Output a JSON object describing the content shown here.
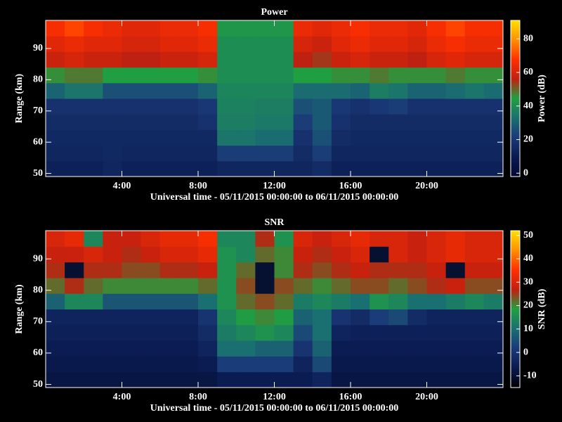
{
  "chart_data": [
    {
      "type": "heatmap",
      "title": "Power",
      "xlabel": "Universal time - 05/11/2015 00:00:00 to 06/11/2015 00:00:00",
      "ylabel": "Range (km)",
      "zlabel": "Power (dB)",
      "xlim": [
        0,
        24
      ],
      "ylim": [
        49,
        99
      ],
      "zlim": [
        -2,
        91
      ],
      "xticks": [
        {
          "value": 4,
          "label": "4:00"
        },
        {
          "value": 8,
          "label": "8:00"
        },
        {
          "value": 12,
          "label": "12:00"
        },
        {
          "value": 16,
          "label": "16:00"
        },
        {
          "value": 20,
          "label": "20:00"
        }
      ],
      "yticks": [
        50,
        60,
        70,
        80,
        90
      ],
      "zticks": [
        0,
        20,
        40,
        60,
        80
      ],
      "colormap": [
        "#000830",
        "#0a1a50",
        "#1a3a78",
        "#1a7070",
        "#20a040",
        "#c02010",
        "#ff3000",
        "#ff9000",
        "#ffe000"
      ],
      "xbins": [
        0,
        1,
        2,
        3,
        4,
        5,
        6,
        7,
        8,
        9,
        10,
        11,
        12,
        13,
        14,
        15,
        16,
        17,
        18,
        19,
        20,
        21,
        22,
        23,
        24
      ],
      "ybins": [
        49,
        54,
        59,
        64,
        69,
        74,
        79,
        84,
        89,
        94,
        99
      ],
      "z": [
        [
          12,
          12,
          12,
          14,
          12,
          12,
          12,
          12,
          12,
          14,
          14,
          14,
          14,
          14,
          16,
          12,
          12,
          12,
          12,
          12,
          12,
          12,
          12,
          12
        ],
        [
          14,
          14,
          14,
          15,
          14,
          14,
          14,
          14,
          14,
          22,
          22,
          22,
          22,
          16,
          22,
          14,
          14,
          14,
          14,
          14,
          14,
          14,
          14,
          14
        ],
        [
          15,
          15,
          15,
          15,
          15,
          15,
          15,
          15,
          15,
          34,
          34,
          32,
          32,
          18,
          26,
          16,
          15,
          15,
          15,
          15,
          15,
          15,
          15,
          15
        ],
        [
          16,
          16,
          16,
          16,
          16,
          16,
          16,
          16,
          18,
          36,
          36,
          35,
          35,
          22,
          28,
          18,
          16,
          16,
          16,
          16,
          16,
          16,
          16,
          16
        ],
        [
          18,
          18,
          18,
          18,
          18,
          18,
          18,
          18,
          20,
          37,
          37,
          36,
          36,
          26,
          28,
          20,
          18,
          20,
          22,
          18,
          18,
          18,
          18,
          18
        ],
        [
          30,
          34,
          34,
          26,
          26,
          26,
          26,
          26,
          30,
          38,
          38,
          38,
          38,
          32,
          32,
          32,
          30,
          36,
          34,
          30,
          30,
          32,
          34,
          32
        ],
        [
          46,
          48,
          48,
          44,
          44,
          44,
          44,
          44,
          46,
          40,
          40,
          40,
          40,
          44,
          44,
          46,
          46,
          48,
          46,
          46,
          46,
          48,
          46,
          46
        ],
        [
          58,
          60,
          58,
          58,
          56,
          56,
          58,
          58,
          60,
          40,
          40,
          40,
          40,
          56,
          54,
          58,
          60,
          58,
          58,
          56,
          60,
          62,
          60,
          60
        ],
        [
          62,
          64,
          62,
          62,
          60,
          60,
          62,
          62,
          64,
          40,
          40,
          40,
          40,
          60,
          58,
          62,
          64,
          62,
          62,
          60,
          64,
          66,
          64,
          64
        ],
        [
          66,
          70,
          66,
          64,
          62,
          62,
          64,
          64,
          66,
          42,
          42,
          42,
          42,
          64,
          62,
          64,
          66,
          64,
          64,
          62,
          66,
          70,
          66,
          66
        ]
      ]
    },
    {
      "type": "heatmap",
      "title": "SNR",
      "xlabel": "Universal time - 05/11/2015 00:00:00 to 06/11/2015 00:00:00",
      "ylabel": "Range (km)",
      "zlabel": "SNR (dB)",
      "xlim": [
        0,
        24
      ],
      "ylim": [
        49,
        99
      ],
      "zlim": [
        -15,
        52
      ],
      "xticks": [
        {
          "value": 4,
          "label": "4:00"
        },
        {
          "value": 8,
          "label": "8:00"
        },
        {
          "value": 12,
          "label": "12:00"
        },
        {
          "value": 16,
          "label": "16:00"
        },
        {
          "value": 20,
          "label": "20:00"
        }
      ],
      "yticks": [
        50,
        60,
        70,
        80,
        90
      ],
      "zticks": [
        -10,
        0,
        10,
        20,
        30,
        40,
        50
      ],
      "colormap": [
        "#000000",
        "#0a1a50",
        "#1a3a78",
        "#1a7070",
        "#20a040",
        "#c02010",
        "#ff3000",
        "#ff9000",
        "#ffe000"
      ],
      "xbins": [
        0,
        1,
        2,
        3,
        4,
        5,
        6,
        7,
        8,
        9,
        10,
        11,
        12,
        13,
        14,
        15,
        16,
        17,
        18,
        19,
        20,
        21,
        22,
        23,
        24
      ],
      "ybins": [
        49,
        54,
        59,
        64,
        69,
        74,
        79,
        84,
        89,
        94,
        99
      ],
      "z": [
        [
          -8,
          -8,
          -8,
          -8,
          -8,
          -8,
          -8,
          -8,
          -8,
          -6,
          -6,
          -6,
          -6,
          -6,
          -4,
          -8,
          -8,
          -8,
          -8,
          -8,
          -8,
          -8,
          -8,
          -8
        ],
        [
          -7,
          -7,
          -7,
          -7,
          -7,
          -7,
          -7,
          -7,
          -6,
          2,
          2,
          2,
          2,
          -4,
          4,
          -7,
          -7,
          -7,
          -7,
          -7,
          -7,
          -7,
          -7,
          -7
        ],
        [
          -6,
          -6,
          -6,
          -6,
          -6,
          -6,
          -6,
          -6,
          -4,
          10,
          10,
          8,
          8,
          0,
          8,
          -6,
          -6,
          -6,
          -6,
          -6,
          -6,
          -6,
          -6,
          -6
        ],
        [
          -5,
          -5,
          -5,
          -5,
          -5,
          -5,
          -5,
          -5,
          -2,
          12,
          14,
          16,
          14,
          4,
          10,
          -4,
          -5,
          -5,
          -5,
          -5,
          -5,
          -5,
          -5,
          -5
        ],
        [
          -4,
          -4,
          -4,
          -4,
          -4,
          -4,
          -4,
          -4,
          0,
          14,
          18,
          20,
          18,
          8,
          10,
          0,
          -2,
          2,
          4,
          -2,
          -4,
          -4,
          -4,
          -4
        ],
        [
          8,
          14,
          14,
          6,
          6,
          6,
          6,
          6,
          10,
          16,
          22,
          24,
          22,
          12,
          14,
          12,
          10,
          16,
          14,
          10,
          10,
          12,
          14,
          12
        ],
        [
          22,
          26,
          22,
          20,
          20,
          20,
          20,
          20,
          22,
          16,
          24,
          -10,
          24,
          22,
          20,
          22,
          24,
          24,
          22,
          24,
          26,
          28,
          24,
          24
        ],
        [
          26,
          -10,
          26,
          26,
          24,
          24,
          26,
          26,
          28,
          16,
          22,
          -10,
          20,
          26,
          24,
          26,
          28,
          26,
          26,
          26,
          28,
          -10,
          28,
          28
        ],
        [
          28,
          28,
          30,
          28,
          26,
          28,
          30,
          30,
          32,
          16,
          14,
          22,
          20,
          28,
          26,
          28,
          30,
          -10,
          30,
          28,
          30,
          32,
          30,
          30
        ],
        [
          30,
          32,
          14,
          28,
          28,
          30,
          32,
          32,
          34,
          14,
          14,
          26,
          16,
          30,
          28,
          30,
          32,
          30,
          30,
          28,
          30,
          32,
          30,
          30
        ]
      ]
    }
  ]
}
